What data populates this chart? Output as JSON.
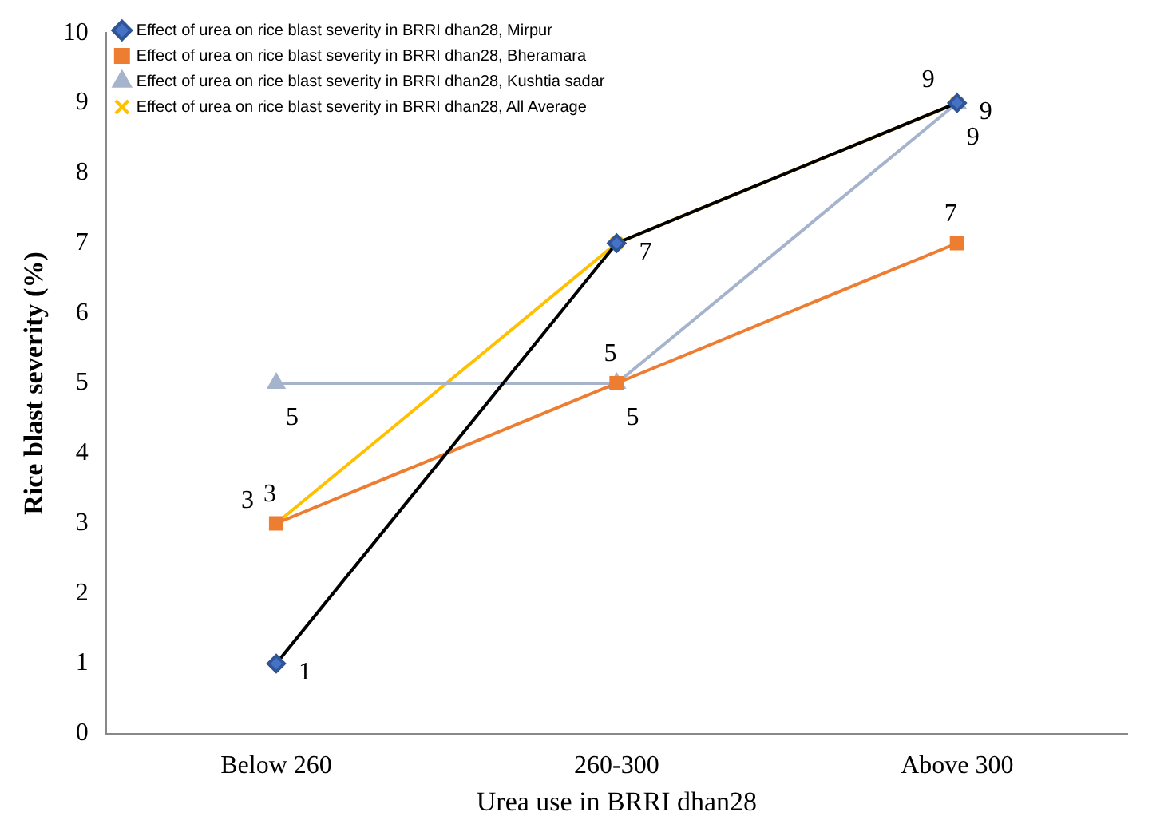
{
  "chart_data": {
    "type": "line",
    "xlabel": "Urea use in BRRI dhan28",
    "ylabel": "Rice blast severity (%)",
    "categories": [
      "Below 260",
      "260-300",
      "Above 300"
    ],
    "series": [
      {
        "name": "Effect of urea on rice blast severity in BRRI dhan28, Mirpur",
        "color": "#000000",
        "marker": "diamond",
        "values": [
          1,
          7,
          9
        ],
        "value_labels": [
          "1",
          "7",
          "9"
        ]
      },
      {
        "name": "Effect of urea on rice blast severity in BRRI dhan28, Bheramara",
        "color": "#ed7d31",
        "marker": "square",
        "values": [
          3,
          5,
          7
        ],
        "value_labels": [
          "3",
          "5",
          "7"
        ]
      },
      {
        "name": "Effect of urea on rice blast severity in BRRI dhan28, Kushtia sadar",
        "color": "#a5b4cc",
        "marker": "triangle",
        "values": [
          5,
          5,
          9
        ],
        "value_labels": [
          "5",
          "5",
          "9"
        ]
      },
      {
        "name": "Effect of urea on rice blast severity in BRRI dhan28, All Average",
        "color": "#ffc000",
        "marker": "cross",
        "values": [
          3,
          7,
          9
        ],
        "value_labels": [
          "3",
          null,
          "9"
        ]
      }
    ],
    "ylim": [
      0,
      10
    ],
    "yticks": [
      0,
      1,
      2,
      3,
      4,
      5,
      6,
      7,
      8,
      9,
      10
    ],
    "grid": false,
    "legend": "top left"
  }
}
